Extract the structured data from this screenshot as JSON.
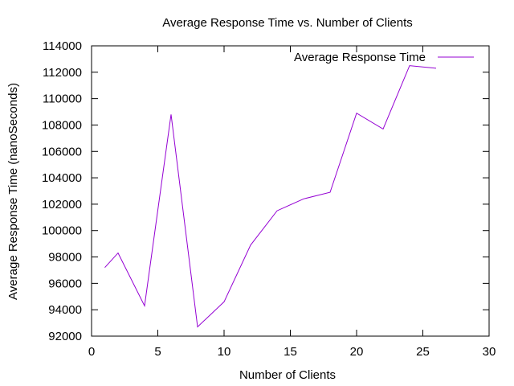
{
  "chart_data": {
    "type": "line",
    "title": "Average Response Time vs. Number of Clients",
    "xlabel": "Number of Clients",
    "ylabel": "Average Response Time (nanoSeconds)",
    "xlim": [
      0,
      30
    ],
    "ylim": [
      92000,
      114000
    ],
    "xticks": [
      0,
      5,
      10,
      15,
      20,
      25,
      30
    ],
    "yticks": [
      92000,
      94000,
      96000,
      98000,
      100000,
      102000,
      104000,
      106000,
      108000,
      110000,
      112000,
      114000
    ],
    "grid": false,
    "legend_position": "top-right",
    "series": [
      {
        "name": "Average Response Time",
        "color": "#9400d3",
        "x": [
          1,
          2,
          4,
          6,
          8,
          10,
          12,
          14,
          16,
          18,
          20,
          22,
          24,
          26
        ],
        "y": [
          97200,
          98300,
          94300,
          108800,
          92700,
          94600,
          98900,
          101500,
          102400,
          102900,
          108900,
          107700,
          112500,
          112300
        ]
      }
    ]
  }
}
